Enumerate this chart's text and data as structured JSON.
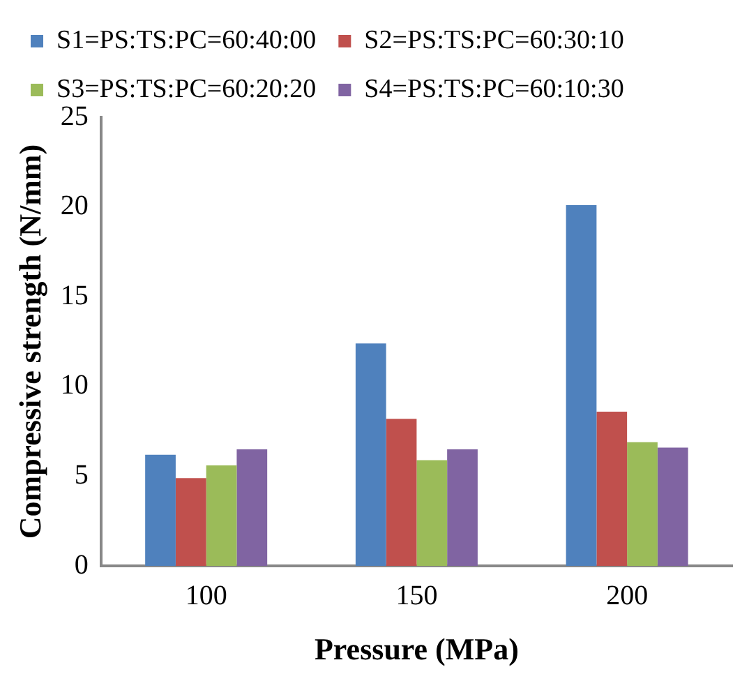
{
  "chart_data": {
    "type": "bar",
    "xlabel": "Pressure (MPa)",
    "ylabel": "Compressive strength (N/mm)",
    "categories": [
      "100",
      "150",
      "200"
    ],
    "series": [
      {
        "name": "S1=PS:TS:PC=60:40:00",
        "color": "#4f81bd",
        "values": [
          6.2,
          12.4,
          20.1
        ]
      },
      {
        "name": "S2=PS:TS:PC=60:30:10",
        "color": "#c0504d",
        "values": [
          4.9,
          8.2,
          8.6
        ]
      },
      {
        "name": "S3=PS:TS:PC=60:20:20",
        "color": "#9bbb59",
        "values": [
          5.6,
          5.9,
          6.9
        ]
      },
      {
        "name": "S4=PS:TS:PC=60:10:30",
        "color": "#8064a2",
        "values": [
          6.5,
          6.5,
          6.6
        ]
      }
    ],
    "ylim": [
      0,
      25
    ],
    "yticks": [
      0,
      5,
      10,
      15,
      20,
      25
    ],
    "grid": false,
    "legend": "top"
  }
}
